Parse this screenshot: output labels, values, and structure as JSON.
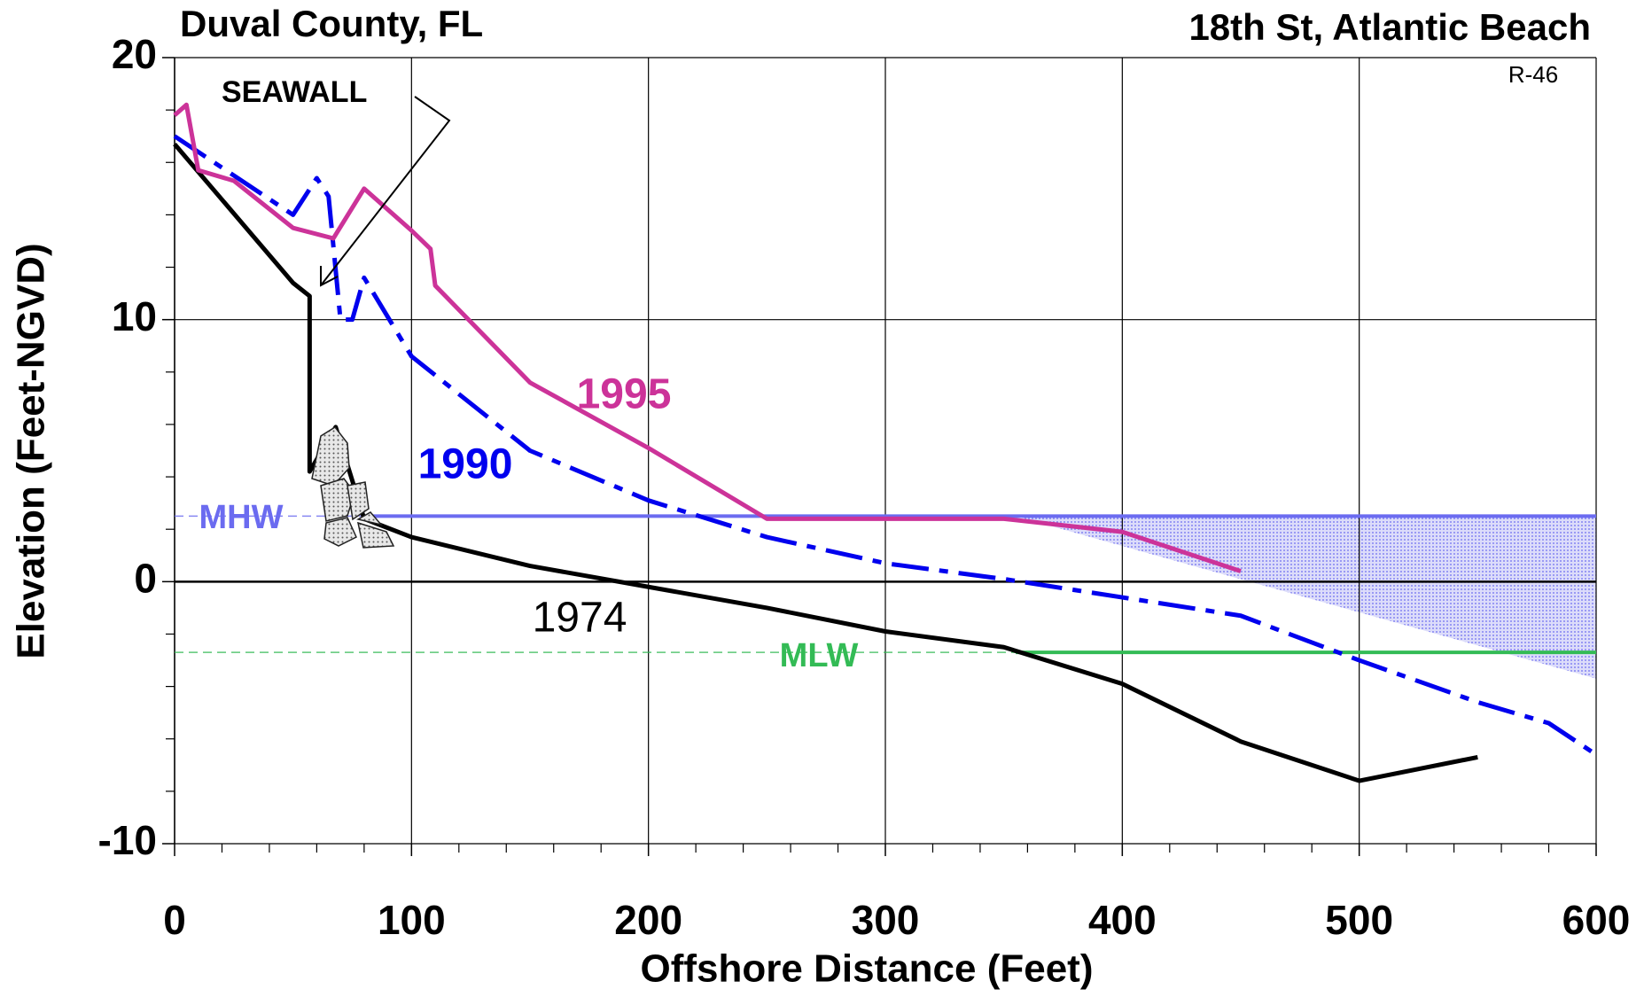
{
  "chart_data": {
    "type": "line",
    "title": "Duval County, FL",
    "subtitle": "18th St, Atlantic Beach",
    "profile_id": "R-46",
    "x_label": "Offshore Distance (Feet)",
    "y_label": "Elevation (Feet-NGVD)",
    "xlim": [
      0,
      600
    ],
    "ylim": [
      -10,
      20
    ],
    "xticks": [
      0,
      100,
      200,
      300,
      400,
      500,
      600
    ],
    "yticks": [
      20,
      10,
      0,
      -10
    ],
    "xminorticks": [
      20,
      40,
      60,
      80,
      120,
      140,
      160,
      180,
      220,
      240,
      260,
      280,
      320,
      340,
      360,
      380,
      420,
      440,
      460,
      480,
      520,
      540,
      560,
      580
    ],
    "yminorticks": [
      18,
      16,
      14,
      12,
      8,
      6,
      4,
      2,
      -2,
      -4,
      -6,
      -8
    ],
    "grid": true,
    "annotations": [
      "SEAWALL"
    ],
    "series": [
      {
        "name": "1974",
        "color": "#000000",
        "style": "solid",
        "x": [
          0,
          50,
          57,
          57,
          68,
          80,
          100,
          150,
          200,
          250,
          300,
          350,
          400,
          450,
          500,
          550
        ],
        "values": [
          16.7,
          11.4,
          10.9,
          4.2,
          5.9,
          2.4,
          1.7,
          0.6,
          -0.2,
          -1,
          -1.9,
          -2.5,
          -3.9,
          -6.1,
          -7.6,
          -6.7
        ]
      },
      {
        "name": "1990",
        "color": "#0000ee",
        "style": "dashdot",
        "x": [
          0,
          50,
          60,
          65,
          70,
          75,
          80,
          100,
          150,
          200,
          250,
          300,
          350,
          400,
          450,
          500,
          550,
          580,
          600
        ],
        "values": [
          17,
          14,
          15.4,
          14.7,
          10,
          10,
          11.6,
          8.6,
          5,
          3.1,
          1.7,
          0.7,
          0.1,
          -0.6,
          -1.3,
          -3,
          -4.6,
          -5.4,
          -6.6
        ]
      },
      {
        "name": "1995",
        "color": "#cc3399",
        "style": "solid",
        "x": [
          0,
          5,
          10,
          25,
          50,
          67,
          80,
          100,
          108,
          110,
          150,
          200,
          250,
          350,
          400,
          450
        ],
        "values": [
          17.8,
          18.2,
          15.7,
          15.3,
          13.5,
          13.1,
          15,
          13.4,
          12.7,
          11.3,
          7.6,
          5.1,
          2.4,
          2.4,
          1.9,
          0.4
        ]
      }
    ],
    "reference_lines": [
      {
        "label": "MHW",
        "value": 2.5,
        "color": "#6b6bf0",
        "solid_from": 80
      },
      {
        "label": "MLW",
        "value": -2.7,
        "color": "#33bb55",
        "solid_from": 355
      }
    ],
    "shaded_area": {
      "x": [
        355,
        600
      ],
      "values": [
        2.5,
        -3.7
      ],
      "color": "#6b6bf0"
    }
  }
}
